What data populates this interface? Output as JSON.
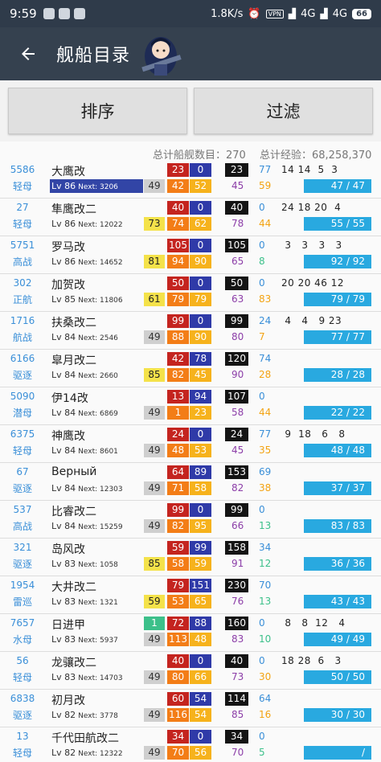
{
  "status": {
    "time": "9:59",
    "speed": "1.8K/s",
    "vpn": "VPN",
    "net1": "4G",
    "net2": "4G",
    "battery": "66"
  },
  "toolbar": {
    "title": "舰船目录"
  },
  "buttons": {
    "sort": "排序",
    "filter": "过滤"
  },
  "summary": {
    "count": "总计船舰数目：270",
    "exp": "总计经验：68,258,370"
  },
  "ships": [
    {
      "id": "5586",
      "type": "轻母",
      "name": "大鹰改",
      "lv": "Lv 86",
      "next": "Next: 3206",
      "cond": "49",
      "fp": "23",
      "tp": "0",
      "aa_total": "23",
      "fp2": "42",
      "tp2": "52",
      "asw": "45",
      "aa": "77",
      "luck": "59",
      "slots": "14 14  5  3",
      "fuel": "47 / 47",
      "cc": "gray",
      "hl": true
    },
    {
      "id": "27",
      "type": "轻母",
      "name": "隼鹰改二",
      "lv": "Lv 86",
      "next": "Next: 12022",
      "cond": "73",
      "fp": "40",
      "tp": "0",
      "aa_total": "40",
      "fp2": "74",
      "tp2": "62",
      "asw": "78",
      "aa": "0",
      "luck": "44",
      "slots": "24 18 20  4",
      "fuel": "55 / 55",
      "cc": "yel",
      "hl": false
    },
    {
      "id": "5751",
      "type": "高战",
      "name": "罗马改",
      "lv": "Lv 86",
      "next": "Next: 14652",
      "cond": "81",
      "fp": "105",
      "tp": "0",
      "aa_total": "105",
      "fp2": "94",
      "tp2": "90",
      "asw": "65",
      "aa": "0",
      "luck": "8",
      "slots": " 3   3   3   3",
      "fuel": "92 / 92",
      "cc": "yel",
      "hl": false
    },
    {
      "id": "302",
      "type": "正航",
      "name": "加贺改",
      "lv": "Lv 85",
      "next": "Next: 11806",
      "cond": "61",
      "fp": "50",
      "tp": "0",
      "aa_total": "50",
      "fp2": "79",
      "tp2": "79",
      "asw": "63",
      "aa": "0",
      "luck": "83",
      "slots": "20 20 46 12",
      "fuel": "79 / 79",
      "cc": "yel",
      "hl": false
    },
    {
      "id": "1716",
      "type": "航战",
      "name": "扶桑改二",
      "lv": "Lv 84",
      "next": "Next: 2546",
      "cond": "49",
      "fp": "99",
      "tp": "0",
      "aa_total": "99",
      "fp2": "88",
      "tp2": "90",
      "asw": "80",
      "aa": "24",
      "luck": "7",
      "slots": " 4   4   9 23",
      "fuel": "77 / 77",
      "cc": "gray",
      "hl": false
    },
    {
      "id": "6166",
      "type": "驱逐",
      "name": "皐月改二",
      "lv": "Lv 84",
      "next": "Next: 2660",
      "cond": "85",
      "fp": "42",
      "tp": "78",
      "aa_total": "120",
      "fp2": "82",
      "tp2": "45",
      "asw": "90",
      "aa": "74",
      "luck": "28",
      "slots": "",
      "fuel": "28 / 28",
      "cc": "yel",
      "hl": false
    },
    {
      "id": "5090",
      "type": "潜母",
      "name": "伊14改",
      "lv": "Lv 84",
      "next": "Next: 6869",
      "cond": "49",
      "fp": "13",
      "tp": "94",
      "aa_total": "107",
      "fp2": "1",
      "tp2": "23",
      "asw": "58",
      "aa": "0",
      "luck": "44",
      "slots": "",
      "fuel": "22 / 22",
      "cc": "gray",
      "hl": false
    },
    {
      "id": "6375",
      "type": "轻母",
      "name": "神鹰改",
      "lv": "Lv 84",
      "next": "Next: 8601",
      "cond": "49",
      "fp": "24",
      "tp": "0",
      "aa_total": "24",
      "fp2": "48",
      "tp2": "53",
      "asw": "45",
      "aa": "77",
      "luck": "35",
      "slots": " 9  18   6   8",
      "fuel": "48 / 48",
      "cc": "gray",
      "hl": false
    },
    {
      "id": "67",
      "type": "驱逐",
      "name": "Верный",
      "lv": "Lv 84",
      "next": "Next: 12303",
      "cond": "49",
      "fp": "64",
      "tp": "89",
      "aa_total": "153",
      "fp2": "71",
      "tp2": "58",
      "asw": "82",
      "aa": "69",
      "luck": "38",
      "slots": "",
      "fuel": "37 / 37",
      "cc": "gray",
      "hl": false
    },
    {
      "id": "537",
      "type": "高战",
      "name": "比睿改二",
      "lv": "Lv 84",
      "next": "Next: 15259",
      "cond": "49",
      "fp": "99",
      "tp": "0",
      "aa_total": "99",
      "fp2": "82",
      "tp2": "95",
      "asw": "66",
      "aa": "0",
      "luck": "13",
      "slots": "",
      "fuel": "83 / 83",
      "cc": "gray",
      "hl": false
    },
    {
      "id": "321",
      "type": "驱逐",
      "name": "岛风改",
      "lv": "Lv 83",
      "next": "Next: 1058",
      "cond": "85",
      "fp": "59",
      "tp": "99",
      "aa_total": "158",
      "fp2": "58",
      "tp2": "59",
      "asw": "91",
      "aa": "34",
      "luck": "12",
      "slots": "",
      "fuel": "36 / 36",
      "cc": "yel",
      "hl": false
    },
    {
      "id": "1954",
      "type": "雷巡",
      "name": "大井改二",
      "lv": "Lv 83",
      "next": "Next: 1321",
      "cond": "59",
      "fp": "79",
      "tp": "151",
      "aa_total": "230",
      "fp2": "53",
      "tp2": "65",
      "asw": "76",
      "aa": "70",
      "luck": "13",
      "slots": "",
      "fuel": "43 / 43",
      "cc": "yel",
      "hl": false
    },
    {
      "id": "7657",
      "type": "水母",
      "name": "日进甲",
      "lv": "Lv 83",
      "next": "Next: 5937",
      "cond": "1",
      "cond2": "49",
      "fp": "72",
      "tp": "88",
      "aa_total": "160",
      "fp2": "113",
      "tp2": "48",
      "asw": "83",
      "aa": "0",
      "luck": "10",
      "slots": " 8   8  12   4",
      "fuel": "49 / 49",
      "cc": "grn",
      "hl": false
    },
    {
      "id": "56",
      "type": "轻母",
      "name": "龙骧改二",
      "lv": "Lv 83",
      "next": "Next: 14703",
      "cond": "49",
      "fp": "40",
      "tp": "0",
      "aa_total": "40",
      "fp2": "80",
      "tp2": "66",
      "asw": "73",
      "aa": "0",
      "luck": "30",
      "slots": "18 28  6   3",
      "fuel": "50 / 50",
      "cc": "gray",
      "hl": false
    },
    {
      "id": "6838",
      "type": "驱逐",
      "name": "初月改",
      "lv": "Lv 82",
      "next": "Next: 3778",
      "cond": "49",
      "fp": "60",
      "tp": "54",
      "aa_total": "114",
      "fp2": "116",
      "tp2": "54",
      "asw": "85",
      "aa": "64",
      "luck": "16",
      "slots": "",
      "fuel": "30 / 30",
      "cc": "gray",
      "hl": false
    },
    {
      "id": "13",
      "type": "轻母",
      "name": "千代田航改二",
      "lv": "Lv 82",
      "next": "Next: 12322",
      "cond": "49",
      "fp": "34",
      "tp": "0",
      "aa_total": "34",
      "fp2": "70",
      "tp2": "56",
      "asw": "70",
      "aa": "0",
      "luck": "5",
      "slots": "",
      "fuel": "  /  ",
      "cc": "gray",
      "hl": false
    }
  ]
}
